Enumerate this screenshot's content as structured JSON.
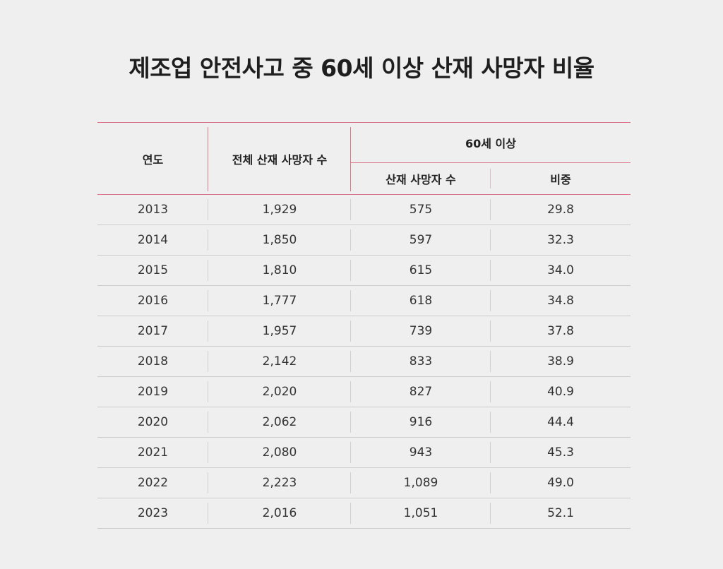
{
  "title": "제조업 안전사고 중 60세 이상 산재 사망자 비율",
  "table": {
    "headers": {
      "year": "연도",
      "total_deaths": "전체 산재 사망자 수",
      "group_60_plus": "60세 이상",
      "deaths_60_plus": "산재 사망자 수",
      "share": "비중"
    },
    "rows": [
      {
        "year": "2013",
        "total": "1,929",
        "over60": "575",
        "share": "29.8"
      },
      {
        "year": "2014",
        "total": "1,850",
        "over60": "597",
        "share": "32.3"
      },
      {
        "year": "2015",
        "total": "1,810",
        "over60": "615",
        "share": "34.0"
      },
      {
        "year": "2016",
        "total": "1,777",
        "over60": "618",
        "share": "34.8"
      },
      {
        "year": "2017",
        "total": "1,957",
        "over60": "739",
        "share": "37.8"
      },
      {
        "year": "2018",
        "total": "2,142",
        "over60": "833",
        "share": "38.9"
      },
      {
        "year": "2019",
        "total": "2,020",
        "over60": "827",
        "share": "40.9"
      },
      {
        "year": "2020",
        "total": "2,062",
        "over60": "916",
        "share": "44.4"
      },
      {
        "year": "2021",
        "total": "2,080",
        "over60": "943",
        "share": "45.3"
      },
      {
        "year": "2022",
        "total": "2,223",
        "over60": "1,089",
        "share": "49.0"
      },
      {
        "year": "2023",
        "total": "2,016",
        "over60": "1,051",
        "share": "52.1"
      }
    ]
  },
  "colors": {
    "background": "#efefef",
    "accent_line": "#d9788a",
    "row_line": "#cccccc",
    "title_text": "#1e1e1e"
  }
}
